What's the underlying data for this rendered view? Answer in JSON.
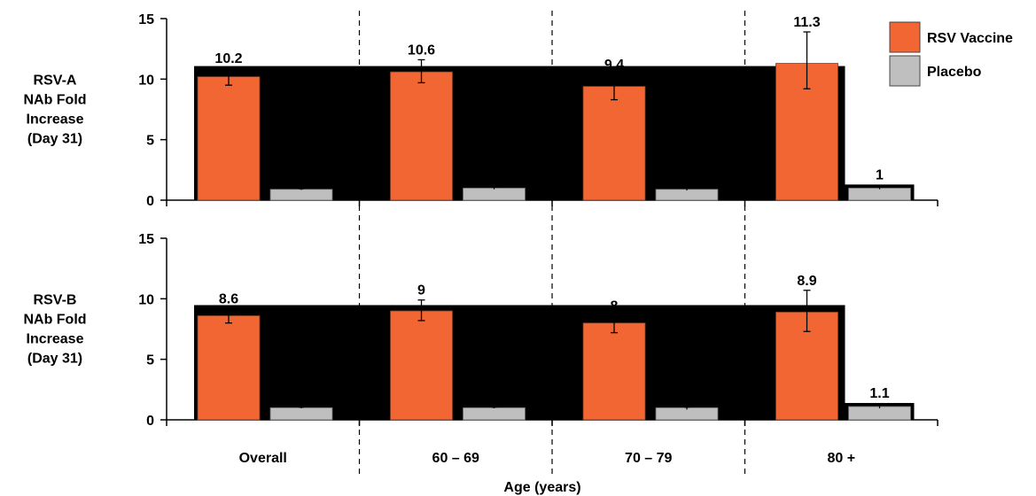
{
  "chart_data": {
    "type": "bar",
    "xlabel": "Age (years)",
    "categories": [
      "Overall",
      "60 – 69",
      "70 – 79",
      "80 +"
    ],
    "legend": {
      "position": "top-right",
      "entries": [
        {
          "label": "RSV Vaccine",
          "color": "#f26633"
        },
        {
          "label": "Placebo",
          "color": "#bfbfbf"
        }
      ]
    },
    "panels": [
      {
        "ylabel": [
          "RSV-A",
          "NAb Fold",
          "Increase",
          "(Day 31)"
        ],
        "ylim": [
          0,
          15
        ],
        "yticks": [
          "0",
          "5",
          "10",
          "15"
        ],
        "series": [
          {
            "name": "RSV Vaccine",
            "values": [
              10.2,
              10.6,
              9.4,
              11.3
            ],
            "errors": [
              [
                9.5,
                10.9
              ],
              [
                9.7,
                11.6
              ],
              [
                8.3,
                10.4
              ],
              [
                9.2,
                13.9
              ]
            ]
          },
          {
            "name": "Placebo",
            "values": [
              0.9,
              1.0,
              0.9,
              1.0
            ],
            "errors": [
              [
                0.85,
                0.95
              ],
              [
                0.9,
                1.1
              ],
              [
                0.8,
                1.0
              ],
              [
                0.9,
                1.1
              ]
            ]
          }
        ],
        "value_labels": [
          "10.2",
          "10.6",
          "9.4",
          "11.3"
        ],
        "placebo_label": "1"
      },
      {
        "ylabel": [
          "RSV-B",
          "NAb Fold",
          "Increase",
          "(Day 31)"
        ],
        "ylim": [
          0,
          15
        ],
        "yticks": [
          "0",
          "5",
          "10",
          "15"
        ],
        "series": [
          {
            "name": "RSV Vaccine",
            "values": [
              8.6,
              9.0,
              8.0,
              8.9
            ],
            "errors": [
              [
                8.0,
                9.2
              ],
              [
                8.2,
                9.9
              ],
              [
                7.2,
                8.6
              ],
              [
                7.3,
                10.7
              ]
            ]
          },
          {
            "name": "Placebo",
            "values": [
              1.0,
              1.0,
              1.0,
              1.1
            ],
            "errors": [
              [
                0.95,
                1.05
              ],
              [
                0.95,
                1.05
              ],
              [
                0.85,
                1.05
              ],
              [
                0.95,
                1.2
              ]
            ]
          }
        ],
        "value_labels": [
          "8.6",
          "9",
          "8",
          "8.9"
        ],
        "placebo_label": "1.1"
      }
    ]
  }
}
